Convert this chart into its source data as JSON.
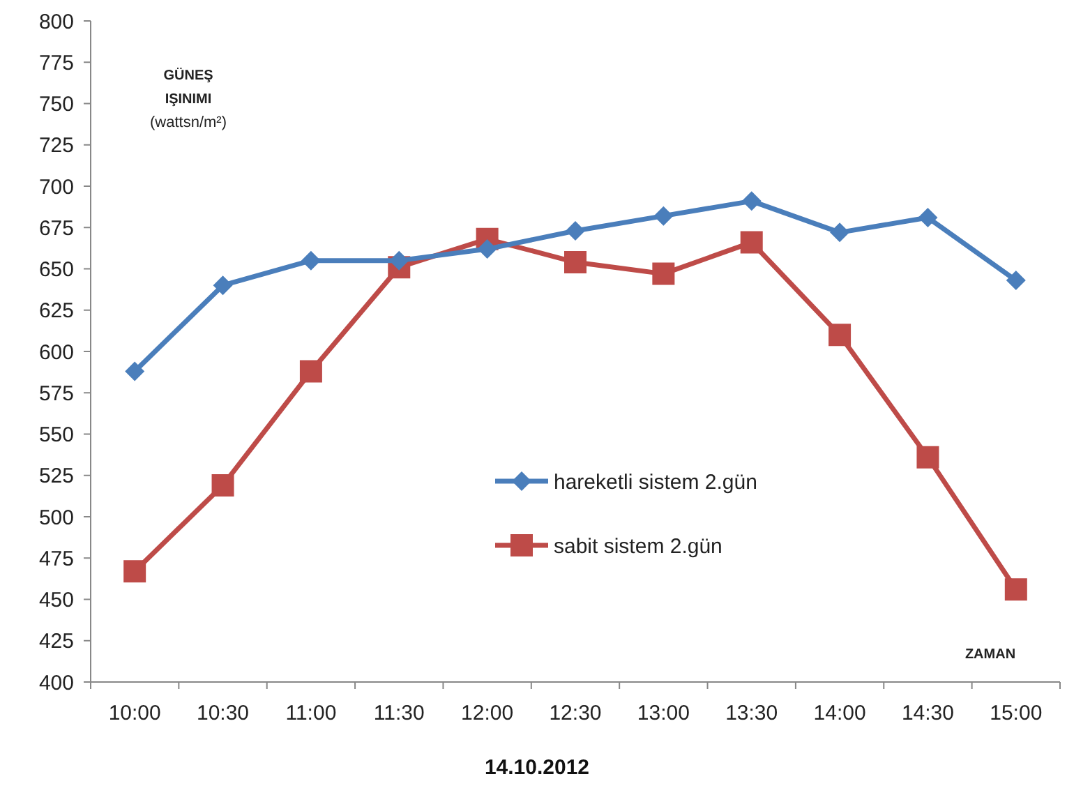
{
  "chart_data": {
    "type": "line",
    "xlabel": "ZAMAN",
    "ylabel": "GÜNEŞ IŞINIMI (wattsn/m²)",
    "annotations": [
      "14.10.2012"
    ],
    "categories": [
      "10:00",
      "10:30",
      "11:00",
      "11:30",
      "12:00",
      "12:30",
      "13:00",
      "13:30",
      "14:00",
      "14:30",
      "15:00"
    ],
    "series": [
      {
        "name": "hareketli sistem 2.gün",
        "color": "#4a7ebb",
        "marker": "diamond",
        "values": [
          588,
          640,
          655,
          655,
          662,
          673,
          682,
          691,
          672,
          681,
          643
        ]
      },
      {
        "name": "sabit sistem 2.gün",
        "color": "#be4b48",
        "marker": "square",
        "values": [
          467,
          519,
          588,
          651,
          668,
          654,
          647,
          666,
          610,
          536,
          456
        ]
      }
    ],
    "ylim": [
      400,
      800
    ],
    "yticks": [
      400,
      425,
      450,
      475,
      500,
      525,
      550,
      575,
      600,
      625,
      650,
      675,
      700,
      725,
      750,
      775,
      800
    ],
    "grid": false,
    "legend": "center"
  }
}
